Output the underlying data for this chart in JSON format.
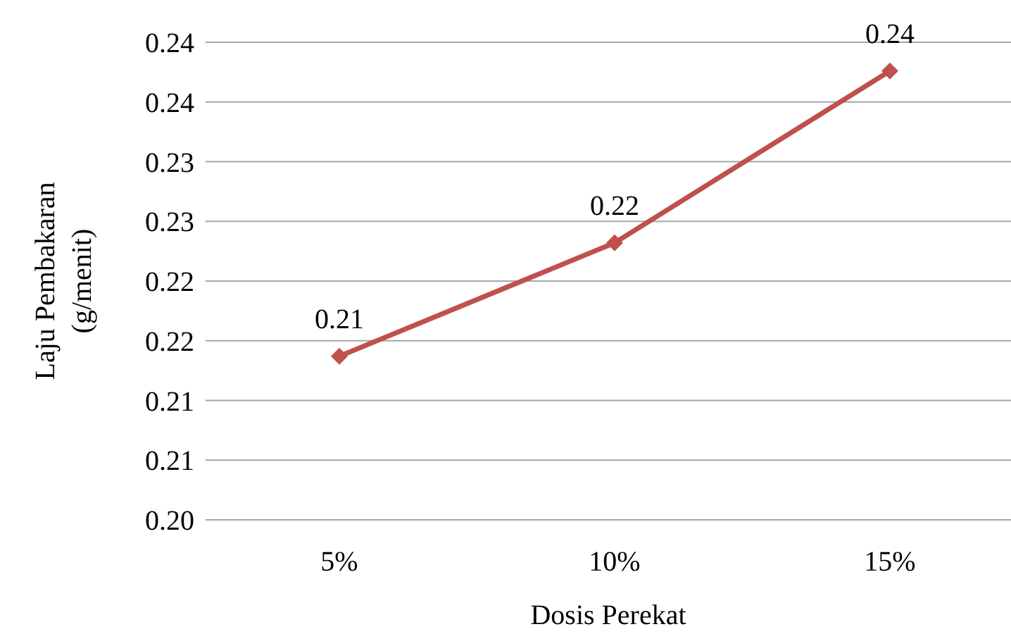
{
  "chart_data": {
    "type": "line",
    "xlabel": "Dosis Perekat",
    "ylabel": "Laju Pembakaran (g/menit)",
    "categories": [
      "5%",
      "10%",
      "15%"
    ],
    "series": [
      {
        "color": "#c0504d",
        "values": [
          0.2137,
          0.2232,
          0.2376
        ],
        "value_labels": [
          "0.21",
          "0.22",
          "0.24"
        ]
      }
    ],
    "ylim": [
      0.2,
      0.24
    ],
    "yticks": [
      {
        "value": 0.2,
        "label": "0.20"
      },
      {
        "value": 0.205,
        "label": "0.21"
      },
      {
        "value": 0.21,
        "label": "0.21"
      },
      {
        "value": 0.215,
        "label": "0.22"
      },
      {
        "value": 0.22,
        "label": "0.22"
      },
      {
        "value": 0.225,
        "label": "0.23"
      },
      {
        "value": 0.23,
        "label": "0.23"
      },
      {
        "value": 0.235,
        "label": "0.24"
      },
      {
        "value": 0.24,
        "label": "0.24"
      }
    ],
    "grid": "y",
    "legend": false,
    "marker": "diamond",
    "line_style": "solid"
  }
}
